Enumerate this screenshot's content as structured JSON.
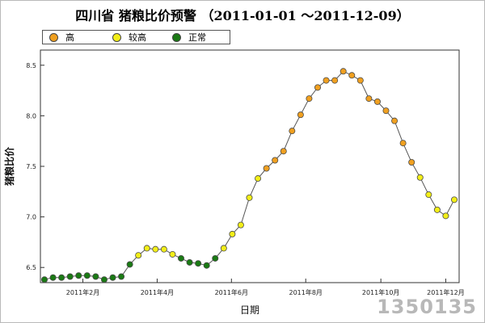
{
  "title": "四川省 猪粮比价预警 （2011-01-01 ～2011-12-09）",
  "legend": [
    {
      "label": "高",
      "color": "#f0a020"
    },
    {
      "label": "较高",
      "color": "#f2ee18"
    },
    {
      "label": "正常",
      "color": "#1a7a14"
    }
  ],
  "watermark": "1350135",
  "chart_data": {
    "type": "line",
    "title": "四川省 猪粮比价预警 （2011-01-01 ～2011-12-09）",
    "xlabel": "日期",
    "ylabel": "猪粮比价",
    "ylim": [
      6.35,
      8.65
    ],
    "yticks": [
      6.5,
      7.0,
      7.5,
      8.0,
      8.5
    ],
    "yticklabels": [
      "6.5",
      "7.0",
      "7.5",
      "8.0",
      "8.5"
    ],
    "xticklabels": [
      "2011年2月",
      "2011年4月",
      "2011年6月",
      "2011年8月",
      "2011年10月",
      "2011年12月"
    ],
    "xtick_weeks": [
      4.5,
      13.2,
      21.9,
      30.6,
      39.4,
      47.0
    ],
    "line_color": "#555555",
    "series": [
      {
        "values": [
          6.38,
          6.4,
          6.4,
          6.41,
          6.42,
          6.42,
          6.41,
          6.38,
          6.4,
          6.41,
          6.53,
          6.62,
          6.69,
          6.68,
          6.68,
          6.63,
          6.59,
          6.55,
          6.54,
          6.52,
          6.59,
          6.69,
          6.83,
          6.92,
          7.19,
          7.38,
          7.48,
          7.56,
          7.65,
          7.85,
          8.01,
          8.17,
          8.28,
          8.35,
          8.35,
          8.44,
          8.4,
          8.35,
          8.17,
          8.14,
          8.05,
          7.95,
          7.73,
          7.54,
          7.39,
          7.22,
          7.07,
          7.01,
          7.17
        ],
        "levels": [
          "正常",
          "正常",
          "正常",
          "正常",
          "正常",
          "正常",
          "正常",
          "正常",
          "正常",
          "正常",
          "正常",
          "较高",
          "较高",
          "较高",
          "较高",
          "较高",
          "正常",
          "正常",
          "正常",
          "正常",
          "正常",
          "较高",
          "较高",
          "较高",
          "较高",
          "较高",
          "高",
          "高",
          "高",
          "高",
          "高",
          "高",
          "高",
          "高",
          "高",
          "高",
          "高",
          "高",
          "高",
          "高",
          "高",
          "高",
          "高",
          "高",
          "较高",
          "较高",
          "较高",
          "较高",
          "较高"
        ]
      }
    ]
  }
}
